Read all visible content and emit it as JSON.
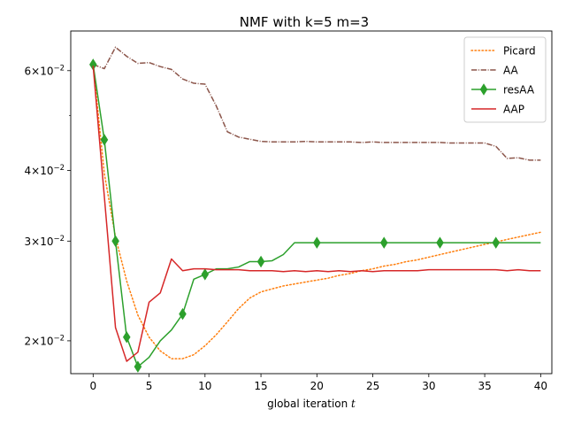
{
  "chart_data": {
    "type": "line",
    "title": "NMF with k=5 m=3",
    "xlabel": "global iteration $t$",
    "ylabel": "",
    "xlim": [
      -2,
      41
    ],
    "ylim": [
      0.0175,
      0.0705
    ],
    "yscale": "log",
    "grid": false,
    "legend_position": "top-right",
    "x_ticks": [
      0,
      5,
      10,
      15,
      20,
      25,
      30,
      35,
      40
    ],
    "x_tick_labels": [
      "0",
      "5",
      "10",
      "15",
      "20",
      "25",
      "30",
      "35",
      "40"
    ],
    "y_ticks": [
      0.02,
      0.03,
      0.04,
      0.06
    ],
    "y_tick_labels": [
      {
        "base": "2",
        "exp": "−2",
        "text": "2×10^−2"
      },
      {
        "base": "3",
        "exp": "−2",
        "text": "3×10^−2"
      },
      {
        "base": "4",
        "exp": "−2",
        "text": "4×10^−2"
      },
      {
        "base": "6",
        "exp": "−2",
        "text": "6×10^−2"
      }
    ],
    "x_label_parts": {
      "text": "global iteration ",
      "var": "t"
    },
    "series": [
      {
        "name": "Picard",
        "color": "#ff7f0e",
        "style": "dotted",
        "marker": "none",
        "x": [
          0,
          1,
          2,
          3,
          4,
          5,
          6,
          7,
          8,
          9,
          10,
          11,
          12,
          13,
          14,
          15,
          16,
          17,
          18,
          19,
          20,
          21,
          22,
          23,
          24,
          25,
          26,
          27,
          28,
          29,
          30,
          31,
          32,
          33,
          34,
          35,
          36,
          37,
          38,
          39,
          40
        ],
        "y": [
          0.0615,
          0.0395,
          0.0305,
          0.0255,
          0.0222,
          0.0203,
          0.0192,
          0.0186,
          0.0186,
          0.0189,
          0.0196,
          0.0205,
          0.0216,
          0.0228,
          0.0238,
          0.0244,
          0.0247,
          0.025,
          0.0252,
          0.0254,
          0.0256,
          0.0258,
          0.0261,
          0.0263,
          0.0266,
          0.0268,
          0.0271,
          0.0273,
          0.0276,
          0.0278,
          0.0281,
          0.0284,
          0.0287,
          0.029,
          0.0293,
          0.0296,
          0.0299,
          0.0302,
          0.0305,
          0.0308,
          0.0311
        ]
      },
      {
        "name": "AA",
        "color": "#8c564b",
        "style": "dashdot",
        "marker": "none",
        "x": [
          0,
          1,
          2,
          3,
          4,
          5,
          6,
          7,
          8,
          9,
          10,
          11,
          12,
          13,
          14,
          15,
          16,
          17,
          18,
          19,
          20,
          21,
          22,
          23,
          24,
          25,
          26,
          27,
          28,
          29,
          30,
          31,
          32,
          33,
          34,
          35,
          36,
          37,
          38,
          39,
          40
        ],
        "y": [
          0.0615,
          0.0605,
          0.066,
          0.0636,
          0.0618,
          0.062,
          0.061,
          0.0603,
          0.058,
          0.057,
          0.0568,
          0.052,
          0.0468,
          0.0458,
          0.0454,
          0.045,
          0.0449,
          0.0449,
          0.0449,
          0.045,
          0.0449,
          0.0449,
          0.0449,
          0.0449,
          0.0448,
          0.0449,
          0.0448,
          0.0448,
          0.0448,
          0.0448,
          0.0448,
          0.0448,
          0.0447,
          0.0447,
          0.0447,
          0.0447,
          0.0441,
          0.042,
          0.0421,
          0.0417,
          0.0417
        ]
      },
      {
        "name": "resAA",
        "color": "#2ca02c",
        "style": "solid",
        "marker": "thin_diamond",
        "marker_indices": [
          0,
          1,
          2,
          3,
          4,
          8,
          10,
          15,
          20,
          26,
          31,
          36
        ],
        "x": [
          0,
          1,
          2,
          3,
          4,
          5,
          6,
          7,
          8,
          9,
          10,
          11,
          12,
          13,
          14,
          15,
          16,
          17,
          18,
          19,
          20,
          21,
          22,
          23,
          24,
          25,
          26,
          27,
          28,
          29,
          30,
          31,
          32,
          33,
          34,
          35,
          36,
          37,
          38,
          39,
          40
        ],
        "y": [
          0.0615,
          0.0453,
          0.03,
          0.0203,
          0.018,
          0.0187,
          0.02,
          0.0209,
          0.0223,
          0.0257,
          0.0262,
          0.0268,
          0.0268,
          0.027,
          0.0276,
          0.0276,
          0.0277,
          0.0284,
          0.0298,
          0.0298,
          0.0298,
          0.0298,
          0.0298,
          0.0298,
          0.0298,
          0.0298,
          0.0298,
          0.0298,
          0.0298,
          0.0298,
          0.0298,
          0.0298,
          0.0298,
          0.0298,
          0.0298,
          0.0298,
          0.0298,
          0.0298,
          0.0298,
          0.0298,
          0.0298
        ]
      },
      {
        "name": "AAP",
        "color": "#d62728",
        "style": "solid",
        "marker": "none",
        "x": [
          0,
          1,
          2,
          3,
          4,
          5,
          6,
          7,
          8,
          9,
          10,
          11,
          12,
          13,
          14,
          15,
          16,
          17,
          18,
          19,
          20,
          21,
          22,
          23,
          24,
          25,
          26,
          27,
          28,
          29,
          30,
          31,
          32,
          33,
          34,
          35,
          36,
          37,
          38,
          39,
          40
        ],
        "y": [
          0.0612,
          0.036,
          0.0211,
          0.0184,
          0.0191,
          0.0234,
          0.0243,
          0.0279,
          0.0266,
          0.0268,
          0.0268,
          0.0267,
          0.0267,
          0.0267,
          0.0266,
          0.0266,
          0.0266,
          0.0265,
          0.0266,
          0.0265,
          0.0266,
          0.0265,
          0.0266,
          0.0265,
          0.0266,
          0.0265,
          0.0266,
          0.0266,
          0.0266,
          0.0266,
          0.0267,
          0.0267,
          0.0267,
          0.0267,
          0.0267,
          0.0267,
          0.0267,
          0.0266,
          0.0267,
          0.0266,
          0.0266
        ]
      }
    ]
  }
}
